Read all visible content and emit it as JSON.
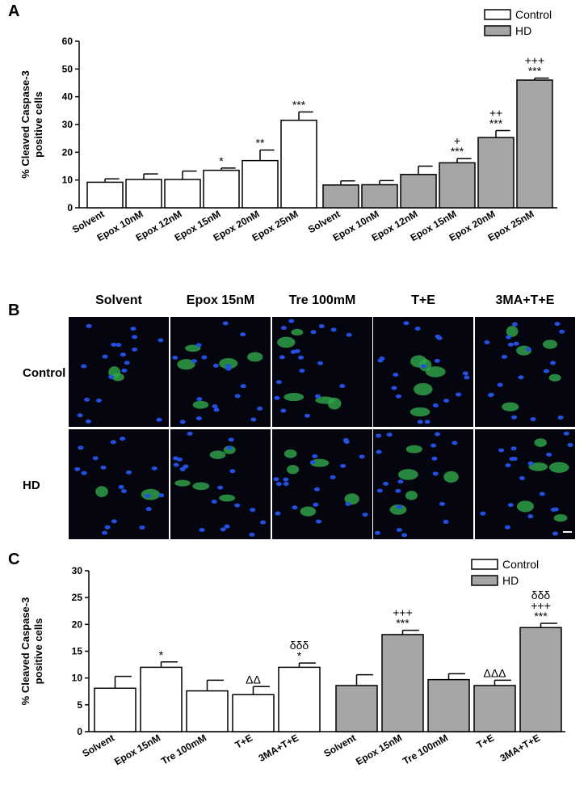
{
  "chart_data": [
    {
      "type": "bar",
      "panel_label": "A",
      "y_label": [
        "% Cleaved Caspase-3",
        "positive cells"
      ],
      "categories": [
        "Solvent",
        "Epox 10nM",
        "Epox 12nM",
        "Epox 15nM",
        "Epox 20nM",
        "Epox 25nM"
      ],
      "series": [
        {
          "name": "Control",
          "color": "#ffffff",
          "values": [
            9.2,
            10.2,
            10.2,
            13.5,
            17,
            31.5
          ],
          "errors": [
            1.2,
            2,
            3,
            0.8,
            3.8,
            3
          ],
          "annotations": [
            [],
            [],
            [],
            [
              "*"
            ],
            [
              "**"
            ],
            [
              "***"
            ]
          ]
        },
        {
          "name": "HD",
          "color": "#a6a6a6",
          "values": [
            8.2,
            8.3,
            12,
            16.2,
            25.3,
            46
          ],
          "errors": [
            1.5,
            1.5,
            3,
            1.5,
            2.5,
            0.7
          ],
          "annotations": [
            [],
            [],
            [],
            [
              "+",
              "***"
            ],
            [
              "++",
              "***"
            ],
            [
              "+++",
              "***"
            ]
          ]
        }
      ],
      "ylim": [
        0,
        60
      ],
      "yticks": [
        0,
        10,
        20,
        30,
        40,
        50,
        60
      ]
    },
    {
      "type": "bar",
      "panel_label": "C",
      "y_label": [
        "% Cleaved Caspase-3",
        "positive cells"
      ],
      "categories": [
        "Solvent",
        "Epox 15nM",
        "Tre 100mM",
        "T+E",
        "3MA+T+E"
      ],
      "series": [
        {
          "name": "Control",
          "color": "#ffffff",
          "values": [
            8.1,
            12,
            7.6,
            6.9,
            12
          ],
          "errors": [
            2.2,
            1,
            2,
            1.5,
            0.8
          ],
          "annotations": [
            [],
            [
              "*"
            ],
            [],
            [
              "ΔΔ"
            ],
            [
              "δδδ",
              "*"
            ]
          ]
        },
        {
          "name": "HD",
          "color": "#a6a6a6",
          "values": [
            8.6,
            18.1,
            9.7,
            8.6,
            19.4
          ],
          "errors": [
            2,
            0.8,
            1.1,
            1,
            0.8
          ],
          "annotations": [
            [],
            [
              "+++",
              "***"
            ],
            [],
            [
              "ΔΔΔ"
            ],
            [
              "δδδ",
              "+++",
              "***"
            ]
          ]
        }
      ],
      "ylim": [
        0,
        30
      ],
      "yticks": [
        0,
        5,
        10,
        15,
        20,
        25,
        30
      ]
    }
  ],
  "image_panel": {
    "panel_label": "B",
    "columns": [
      "Solvent",
      "Epox 15nM",
      "Tre 100mM",
      "T+E",
      "3MA+T+E"
    ],
    "rows": [
      "Control",
      "HD"
    ]
  }
}
